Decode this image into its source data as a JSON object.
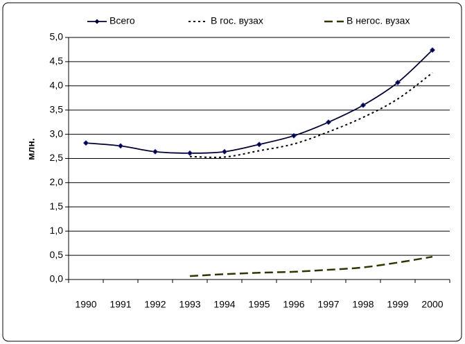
{
  "chart_data": {
    "type": "line",
    "ylabel": "млн.",
    "categories": [
      "1990",
      "1991",
      "1992",
      "1993",
      "1994",
      "1995",
      "1996",
      "1997",
      "1998",
      "1999",
      "2000"
    ],
    "series": [
      {
        "name": "Всего",
        "color": "#000033",
        "style": "solid",
        "marker": "diamond",
        "values": [
          2.82,
          2.76,
          2.64,
          2.61,
          2.64,
          2.79,
          2.97,
          3.25,
          3.6,
          4.07,
          4.74
        ]
      },
      {
        "name": "В гос. вузах",
        "color": "#000000",
        "style": "dotted",
        "values": [
          null,
          null,
          null,
          2.54,
          2.53,
          2.66,
          2.8,
          3.05,
          3.35,
          3.73,
          4.27
        ]
      },
      {
        "name": "В негос. вузах",
        "color": "#333300",
        "style": "dashed",
        "values": [
          null,
          null,
          null,
          0.07,
          0.11,
          0.14,
          0.16,
          0.2,
          0.25,
          0.35,
          0.47
        ]
      }
    ],
    "ylim": [
      0,
      5
    ],
    "yticks": [
      {
        "value": 0,
        "label": "0,0"
      },
      {
        "value": 0.5,
        "label": "0,5"
      },
      {
        "value": 1,
        "label": "1,0"
      },
      {
        "value": 1.5,
        "label": "1,5"
      },
      {
        "value": 2,
        "label": "2,0"
      },
      {
        "value": 2.5,
        "label": "2,5"
      },
      {
        "value": 3,
        "label": "3,0"
      },
      {
        "value": 3.5,
        "label": "3,5"
      },
      {
        "value": 4,
        "label": "4,0"
      },
      {
        "value": 4.5,
        "label": "4,5"
      },
      {
        "value": 5,
        "label": "5,0"
      }
    ],
    "grid": true,
    "legend": "top"
  }
}
